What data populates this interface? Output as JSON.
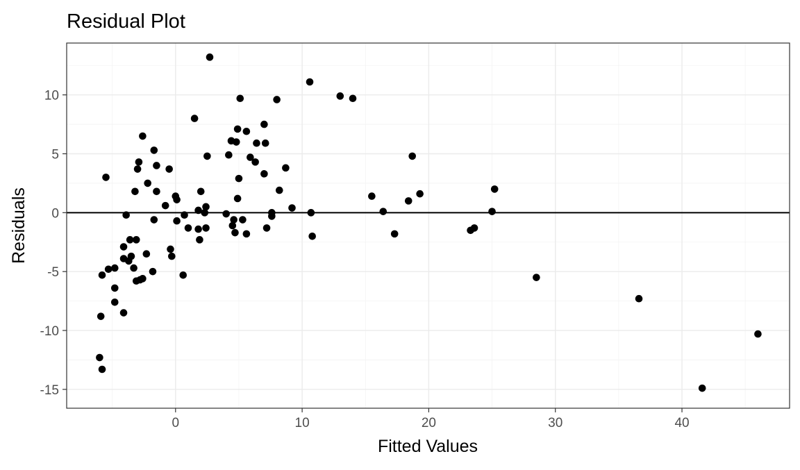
{
  "chart_data": {
    "type": "scatter",
    "title": "Residual Plot",
    "xlabel": "Fitted Values",
    "ylabel": "Residuals",
    "xlim": [
      -8.6,
      48.5
    ],
    "ylim": [
      -16.6,
      14.4
    ],
    "x_ticks": [
      0,
      10,
      20,
      30,
      40
    ],
    "y_ticks": [
      -15,
      -10,
      -5,
      0,
      5,
      10
    ],
    "x_tick_labels": [
      "0",
      "10",
      "20",
      "30",
      "40"
    ],
    "y_tick_labels": [
      "-15",
      "-10",
      "-5",
      "0",
      "5",
      "10"
    ],
    "grid": true,
    "reference_line": {
      "y": 0
    },
    "point_color": "#000000",
    "points": [
      {
        "x": 2.7,
        "y": 13.2
      },
      {
        "x": 10.6,
        "y": 11.1
      },
      {
        "x": 13.0,
        "y": 9.9
      },
      {
        "x": 14.0,
        "y": 9.7
      },
      {
        "x": 5.1,
        "y": 9.7
      },
      {
        "x": 8.0,
        "y": 9.6
      },
      {
        "x": 1.5,
        "y": 8.0
      },
      {
        "x": 7.0,
        "y": 7.5
      },
      {
        "x": 4.9,
        "y": 7.1
      },
      {
        "x": 5.6,
        "y": 6.9
      },
      {
        "x": -2.6,
        "y": 6.5
      },
      {
        "x": 4.4,
        "y": 6.1
      },
      {
        "x": 4.8,
        "y": 6.0
      },
      {
        "x": 6.4,
        "y": 5.9
      },
      {
        "x": 7.1,
        "y": 5.9
      },
      {
        "x": -1.7,
        "y": 5.3
      },
      {
        "x": 4.2,
        "y": 4.9
      },
      {
        "x": 2.5,
        "y": 4.8
      },
      {
        "x": 18.7,
        "y": 4.8
      },
      {
        "x": 5.9,
        "y": 4.7
      },
      {
        "x": -2.9,
        "y": 4.3
      },
      {
        "x": 6.3,
        "y": 4.3
      },
      {
        "x": -1.5,
        "y": 4.0
      },
      {
        "x": 8.7,
        "y": 3.8
      },
      {
        "x": -3.0,
        "y": 3.7
      },
      {
        "x": -0.5,
        "y": 3.7
      },
      {
        "x": 7.0,
        "y": 3.3
      },
      {
        "x": -5.5,
        "y": 3.0
      },
      {
        "x": 5.0,
        "y": 2.9
      },
      {
        "x": -2.2,
        "y": 2.5
      },
      {
        "x": 25.2,
        "y": 2.0
      },
      {
        "x": 8.2,
        "y": 1.9
      },
      {
        "x": -3.2,
        "y": 1.8
      },
      {
        "x": 2.0,
        "y": 1.8
      },
      {
        "x": -1.5,
        "y": 1.8
      },
      {
        "x": 19.3,
        "y": 1.6
      },
      {
        "x": 0.0,
        "y": 1.4
      },
      {
        "x": 15.5,
        "y": 1.4
      },
      {
        "x": 4.9,
        "y": 1.2
      },
      {
        "x": 0.1,
        "y": 1.1
      },
      {
        "x": 18.4,
        "y": 1.0
      },
      {
        "x": -0.8,
        "y": 0.6
      },
      {
        "x": 2.4,
        "y": 0.5
      },
      {
        "x": 9.2,
        "y": 0.4
      },
      {
        "x": 1.8,
        "y": 0.2
      },
      {
        "x": 25.0,
        "y": 0.1
      },
      {
        "x": 16.4,
        "y": 0.1
      },
      {
        "x": 10.7,
        "y": 0.0
      },
      {
        "x": 2.3,
        "y": 0.0
      },
      {
        "x": 7.6,
        "y": 0.0
      },
      {
        "x": 4.0,
        "y": -0.1
      },
      {
        "x": -3.9,
        "y": -0.2
      },
      {
        "x": 0.7,
        "y": -0.2
      },
      {
        "x": 7.6,
        "y": -0.3
      },
      {
        "x": 4.6,
        "y": -0.6
      },
      {
        "x": 5.3,
        "y": -0.6
      },
      {
        "x": -1.7,
        "y": -0.6
      },
      {
        "x": 0.1,
        "y": -0.7
      },
      {
        "x": 4.5,
        "y": -1.1
      },
      {
        "x": 1.0,
        "y": -1.3
      },
      {
        "x": 7.2,
        "y": -1.3
      },
      {
        "x": 2.4,
        "y": -1.3
      },
      {
        "x": 23.6,
        "y": -1.3
      },
      {
        "x": 1.8,
        "y": -1.4
      },
      {
        "x": 23.3,
        "y": -1.5
      },
      {
        "x": 4.7,
        "y": -1.7
      },
      {
        "x": 5.6,
        "y": -1.8
      },
      {
        "x": 17.3,
        "y": -1.8
      },
      {
        "x": 10.8,
        "y": -2.0
      },
      {
        "x": -3.6,
        "y": -2.3
      },
      {
        "x": -3.1,
        "y": -2.3
      },
      {
        "x": 1.9,
        "y": -2.3
      },
      {
        "x": -4.1,
        "y": -2.9
      },
      {
        "x": -0.4,
        "y": -3.1
      },
      {
        "x": -2.3,
        "y": -3.5
      },
      {
        "x": -3.5,
        "y": -3.7
      },
      {
        "x": -0.3,
        "y": -3.7
      },
      {
        "x": -4.1,
        "y": -3.9
      },
      {
        "x": -3.7,
        "y": -4.1
      },
      {
        "x": -3.3,
        "y": -4.7
      },
      {
        "x": -4.8,
        "y": -4.7
      },
      {
        "x": -5.3,
        "y": -4.8
      },
      {
        "x": -1.8,
        "y": -5.0
      },
      {
        "x": -5.8,
        "y": -5.3
      },
      {
        "x": 0.6,
        "y": -5.3
      },
      {
        "x": 28.5,
        "y": -5.5
      },
      {
        "x": -2.6,
        "y": -5.6
      },
      {
        "x": -2.8,
        "y": -5.7
      },
      {
        "x": -3.1,
        "y": -5.8
      },
      {
        "x": -4.8,
        "y": -6.4
      },
      {
        "x": -4.8,
        "y": -7.6
      },
      {
        "x": 36.6,
        "y": -7.3
      },
      {
        "x": -4.1,
        "y": -8.5
      },
      {
        "x": -5.9,
        "y": -8.8
      },
      {
        "x": 46.0,
        "y": -10.3
      },
      {
        "x": -6.0,
        "y": -12.3
      },
      {
        "x": -5.8,
        "y": -13.3
      },
      {
        "x": 41.6,
        "y": -14.9
      }
    ]
  }
}
